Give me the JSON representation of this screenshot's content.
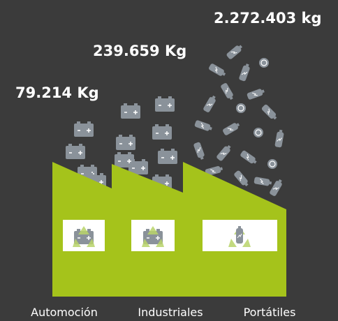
{
  "items": [
    {
      "amount": "79.214 Kg",
      "label": "Automoción"
    },
    {
      "amount": "239.659 Kg",
      "label": "Industriales"
    },
    {
      "amount": "2.272.403 kg",
      "label": "Portátiles"
    }
  ]
}
